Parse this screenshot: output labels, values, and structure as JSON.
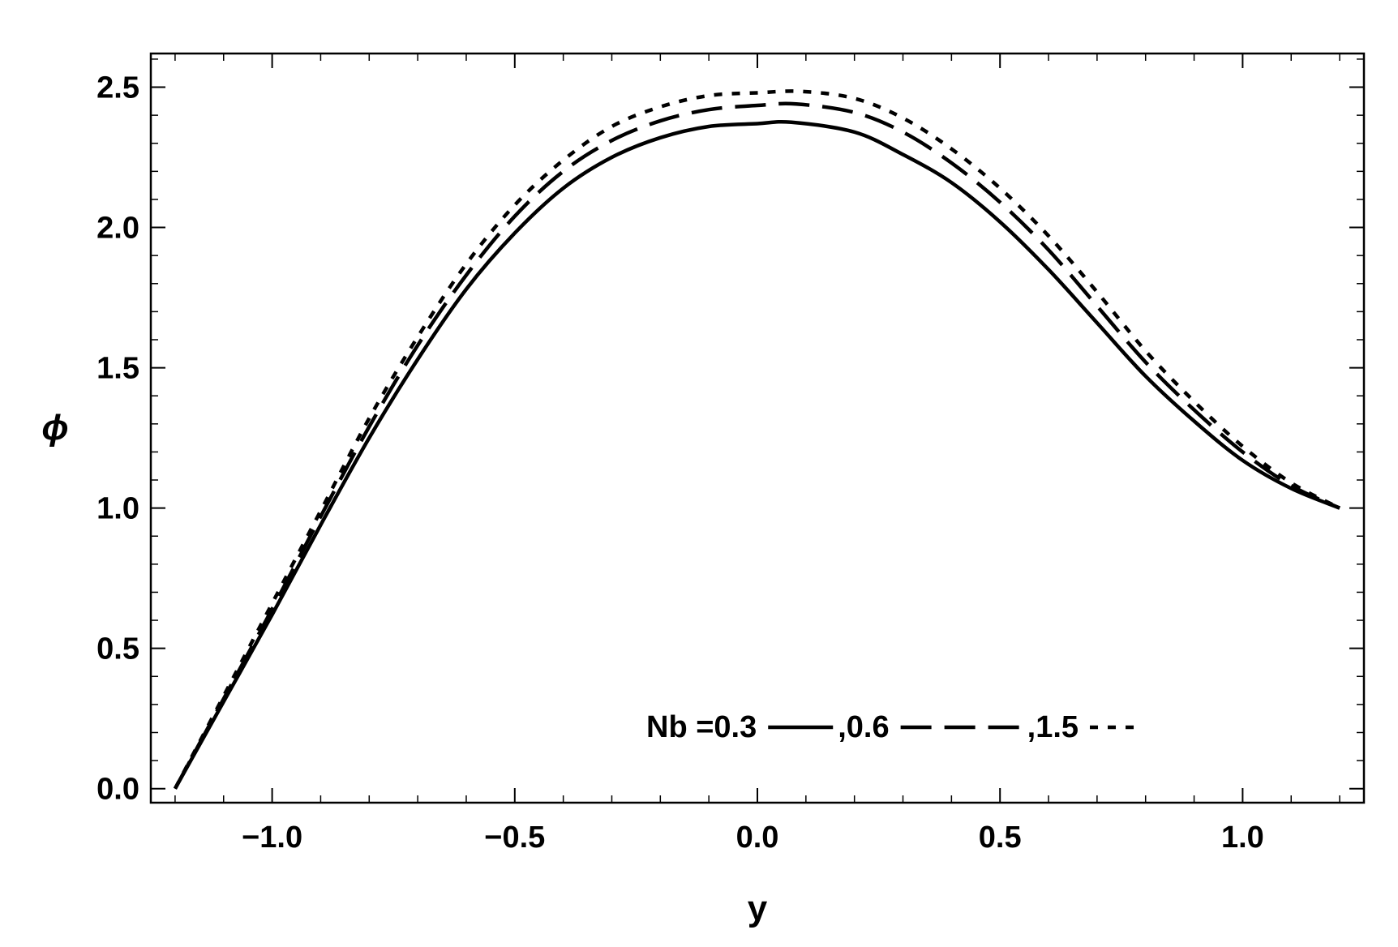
{
  "chart_data": {
    "type": "line",
    "title": "",
    "xlabel": "y",
    "ylabel": "ϕ",
    "xlim": [
      -1.25,
      1.25
    ],
    "ylim": [
      -0.05,
      2.62
    ],
    "xticks": [
      -1.0,
      -0.5,
      0.0,
      0.5,
      1.0
    ],
    "xtick_labels": [
      "−1.0",
      "−0.5",
      "0.0",
      "0.5",
      "1.0"
    ],
    "yticks": [
      0.0,
      0.5,
      1.0,
      1.5,
      2.0,
      2.5
    ],
    "ytick_labels": [
      "0.0",
      "0.5",
      "1.0",
      "1.5",
      "2.0",
      "2.5"
    ],
    "grid": false,
    "legend": {
      "placement": "bottom-right",
      "prefix": "Nb = ",
      "separator": " , "
    },
    "series": [
      {
        "name": "0.3",
        "style": "solid",
        "color": "#000000",
        "points": [
          [
            -1.2,
            0.0
          ],
          [
            -1.1,
            0.31
          ],
          [
            -1.0,
            0.62
          ],
          [
            -0.9,
            0.94
          ],
          [
            -0.8,
            1.25
          ],
          [
            -0.7,
            1.53
          ],
          [
            -0.6,
            1.78
          ],
          [
            -0.5,
            1.98
          ],
          [
            -0.4,
            2.14
          ],
          [
            -0.3,
            2.25
          ],
          [
            -0.2,
            2.32
          ],
          [
            -0.1,
            2.36
          ],
          [
            0.0,
            2.37
          ],
          [
            0.07,
            2.375
          ],
          [
            0.2,
            2.34
          ],
          [
            0.3,
            2.26
          ],
          [
            0.4,
            2.16
          ],
          [
            0.5,
            2.02
          ],
          [
            0.6,
            1.85
          ],
          [
            0.7,
            1.66
          ],
          [
            0.8,
            1.47
          ],
          [
            0.9,
            1.31
          ],
          [
            1.0,
            1.17
          ],
          [
            1.1,
            1.07
          ],
          [
            1.2,
            1.0
          ]
        ]
      },
      {
        "name": "0.6",
        "style": "dashed",
        "color": "#000000",
        "points": [
          [
            -1.2,
            0.0
          ],
          [
            -1.1,
            0.32
          ],
          [
            -1.0,
            0.64
          ],
          [
            -0.9,
            0.97
          ],
          [
            -0.8,
            1.29
          ],
          [
            -0.7,
            1.58
          ],
          [
            -0.6,
            1.83
          ],
          [
            -0.5,
            2.04
          ],
          [
            -0.4,
            2.2
          ],
          [
            -0.3,
            2.31
          ],
          [
            -0.2,
            2.38
          ],
          [
            -0.1,
            2.42
          ],
          [
            0.0,
            2.435
          ],
          [
            0.08,
            2.44
          ],
          [
            0.2,
            2.41
          ],
          [
            0.3,
            2.34
          ],
          [
            0.4,
            2.23
          ],
          [
            0.5,
            2.09
          ],
          [
            0.6,
            1.92
          ],
          [
            0.7,
            1.72
          ],
          [
            0.8,
            1.52
          ],
          [
            0.9,
            1.35
          ],
          [
            1.0,
            1.2
          ],
          [
            1.1,
            1.08
          ],
          [
            1.2,
            1.0
          ]
        ]
      },
      {
        "name": "1.5",
        "style": "dotted",
        "color": "#000000",
        "points": [
          [
            -1.2,
            0.0
          ],
          [
            -1.1,
            0.33
          ],
          [
            -1.0,
            0.66
          ],
          [
            -0.9,
            0.99
          ],
          [
            -0.8,
            1.32
          ],
          [
            -0.7,
            1.61
          ],
          [
            -0.6,
            1.87
          ],
          [
            -0.5,
            2.08
          ],
          [
            -0.4,
            2.24
          ],
          [
            -0.3,
            2.36
          ],
          [
            -0.2,
            2.43
          ],
          [
            -0.1,
            2.47
          ],
          [
            0.0,
            2.48
          ],
          [
            0.09,
            2.485
          ],
          [
            0.2,
            2.46
          ],
          [
            0.3,
            2.39
          ],
          [
            0.4,
            2.28
          ],
          [
            0.5,
            2.14
          ],
          [
            0.6,
            1.97
          ],
          [
            0.7,
            1.77
          ],
          [
            0.8,
            1.56
          ],
          [
            0.9,
            1.38
          ],
          [
            1.0,
            1.22
          ],
          [
            1.1,
            1.09
          ],
          [
            1.2,
            1.0
          ]
        ]
      }
    ]
  }
}
